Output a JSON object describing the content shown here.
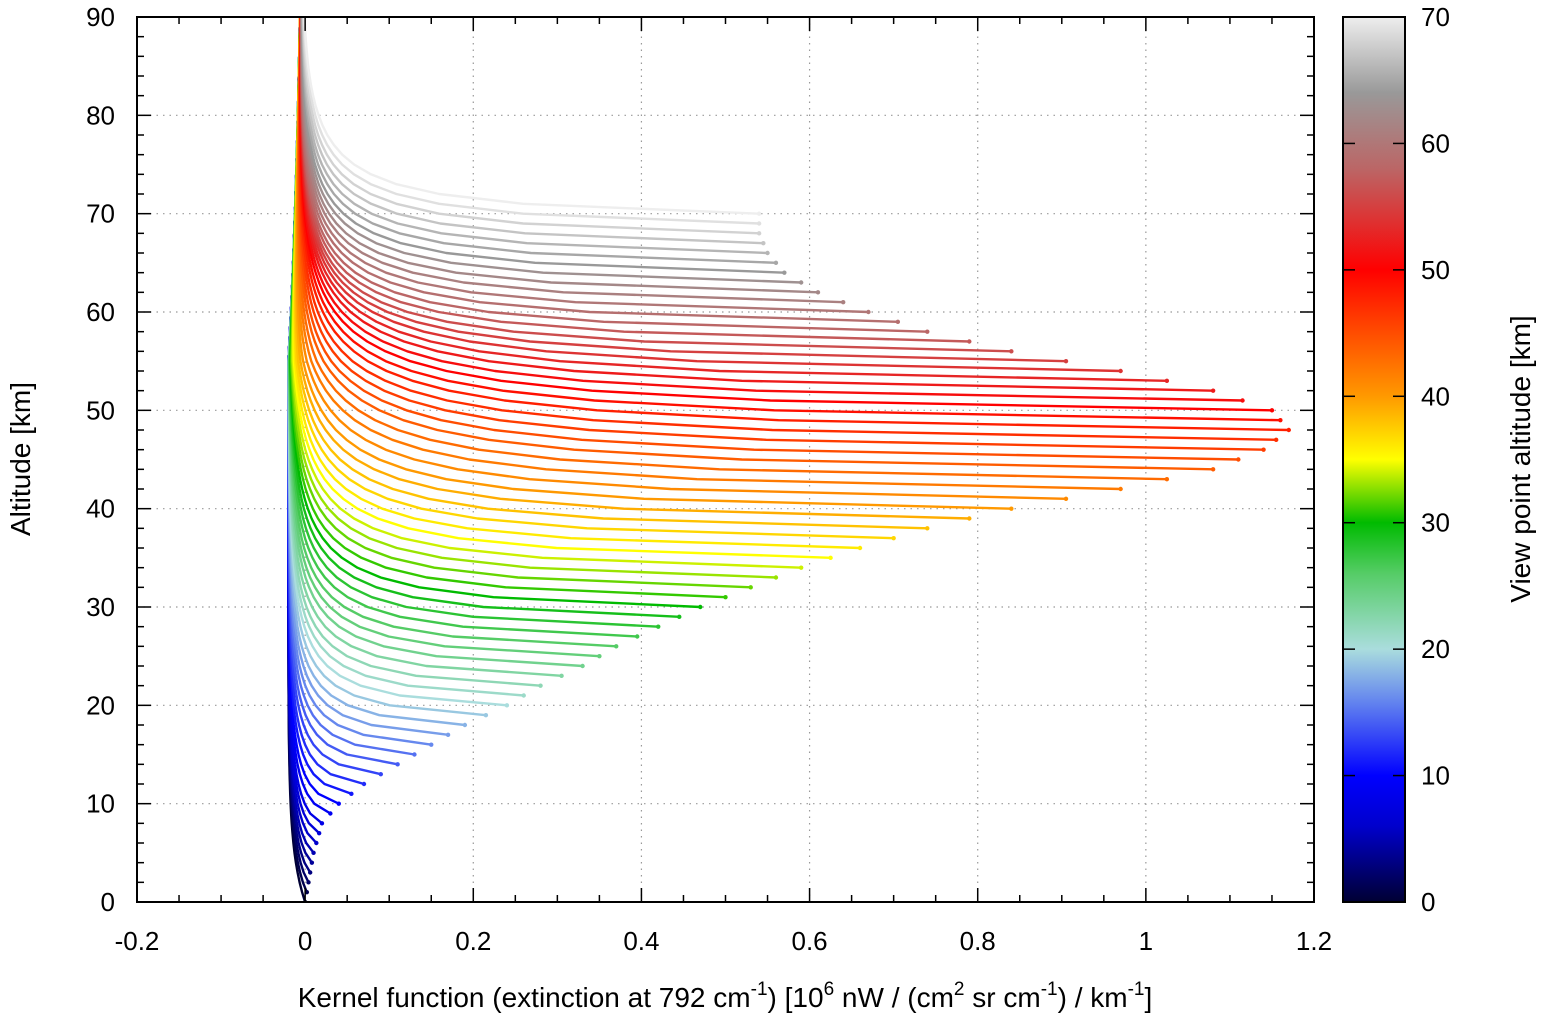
{
  "chart_data": {
    "type": "line",
    "title": "",
    "xlabel": "Kernel function (extinction at 792 cm⁻¹) [10⁶ nW / (cm² sr cm⁻¹) / km⁻¹]",
    "xlabel_parts": {
      "a": "Kernel function (extinction at 792 cm",
      "b": "-1",
      "c": ") [10",
      "d": "6",
      "e": " nW / (cm",
      "f": "2",
      "g": " sr cm",
      "h": "-1",
      "i": ") / km",
      "j": "-1",
      "k": "]"
    },
    "ylabel": "Altitude [km]",
    "xlim": [
      -0.2,
      1.2
    ],
    "ylim": [
      0,
      90
    ],
    "xticks": [
      -0.2,
      0,
      0.2,
      0.4,
      0.6,
      0.8,
      1,
      1.2
    ],
    "xtick_labels": [
      "-0.2",
      "0",
      "0.2",
      "0.4",
      "0.6",
      "0.8",
      "1",
      "1.2"
    ],
    "yticks": [
      0,
      10,
      20,
      30,
      40,
      50,
      60,
      70,
      80,
      90
    ],
    "ytick_labels": [
      "0",
      "10",
      "20",
      "30",
      "40",
      "50",
      "60",
      "70",
      "80",
      "90"
    ],
    "grid": true,
    "colorbar": {
      "label": "View point altitude [km]",
      "range": [
        0,
        70
      ],
      "ticks": [
        0,
        10,
        20,
        30,
        40,
        50,
        60,
        70
      ],
      "tick_labels": [
        "0",
        "10",
        "20",
        "30",
        "40",
        "50",
        "60",
        "70"
      ],
      "colormap": [
        [
          0,
          "#000033"
        ],
        [
          6,
          "#0000cc"
        ],
        [
          10,
          "#0000ff"
        ],
        [
          16,
          "#6688ee"
        ],
        [
          20,
          "#aadddd"
        ],
        [
          26,
          "#55cc66"
        ],
        [
          30,
          "#00bb00"
        ],
        [
          35,
          "#ffff00"
        ],
        [
          40,
          "#ff9900"
        ],
        [
          50,
          "#ff0000"
        ],
        [
          58,
          "#bb6666"
        ],
        [
          64,
          "#999999"
        ],
        [
          70,
          "#eeeeee"
        ]
      ]
    },
    "series_description": "One kernel curve per view point altitude from 0 to 70 km in 1 km steps",
    "view_point_altitudes_km": [
      0,
      70
    ],
    "view_point_step_km": 1,
    "peak_kernel_values": [
      [
        0,
        0.0
      ],
      [
        5,
        0.01
      ],
      [
        8,
        0.02
      ],
      [
        10,
        0.04
      ],
      [
        12,
        0.07
      ],
      [
        14,
        0.11
      ],
      [
        16,
        0.15
      ],
      [
        18,
        0.19
      ],
      [
        20,
        0.24
      ],
      [
        22,
        0.28
      ],
      [
        24,
        0.33
      ],
      [
        26,
        0.37
      ],
      [
        28,
        0.42
      ],
      [
        30,
        0.47
      ],
      [
        32,
        0.53
      ],
      [
        34,
        0.59
      ],
      [
        36,
        0.66
      ],
      [
        38,
        0.74
      ],
      [
        40,
        0.84
      ],
      [
        42,
        0.97
      ],
      [
        44,
        1.08
      ],
      [
        46,
        1.14
      ],
      [
        48,
        1.17
      ],
      [
        50,
        1.15
      ],
      [
        52,
        1.08
      ],
      [
        54,
        0.97
      ],
      [
        56,
        0.84
      ],
      [
        58,
        0.74
      ],
      [
        60,
        0.67
      ],
      [
        62,
        0.61
      ],
      [
        64,
        0.57
      ],
      [
        66,
        0.55
      ],
      [
        68,
        0.54
      ],
      [
        70,
        0.54
      ]
    ]
  }
}
